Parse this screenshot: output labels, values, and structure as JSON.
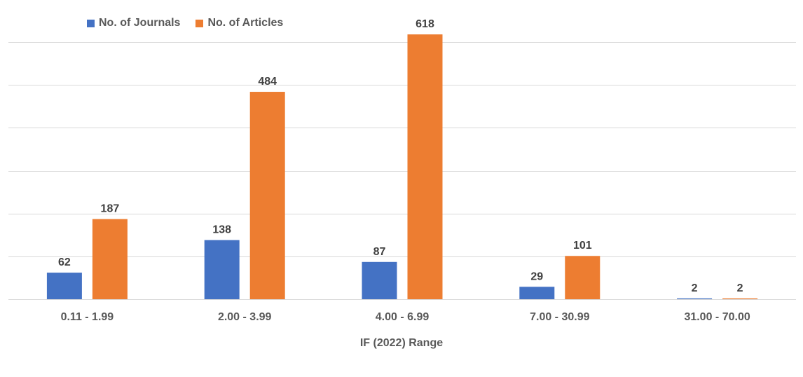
{
  "chart_data": {
    "type": "bar",
    "categories": [
      "0.11 - 1.99",
      "2.00 - 3.99",
      "4.00 - 6.99",
      "7.00 - 30.99",
      "31.00 - 70.00"
    ],
    "series": [
      {
        "name": "No. of Journals",
        "values": [
          62,
          138,
          87,
          29,
          2
        ],
        "color": "#4472C4"
      },
      {
        "name": "No. of Articles",
        "values": [
          187,
          484,
          618,
          101,
          2
        ],
        "color": "#ED7D31"
      }
    ],
    "title": "",
    "xlabel": "IF (2022) Range",
    "ylabel": "",
    "ylim": [
      0,
      700
    ],
    "y_tick_step": 100,
    "y_tick_labels_visible": false,
    "grid": true,
    "legend_position": "top-left",
    "data_labels": true
  }
}
